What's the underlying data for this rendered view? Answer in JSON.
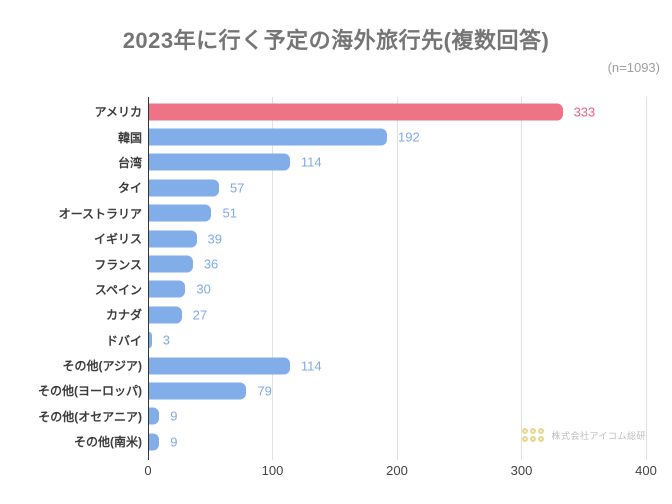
{
  "chart_data": {
    "type": "bar",
    "orientation": "horizontal",
    "title": "2023年に行く予定の海外旅行先(複数回答)",
    "sample_size_label": "(n=1093)",
    "categories": [
      "アメリカ",
      "韓国",
      "台湾",
      "タイ",
      "オーストラリア",
      "イギリス",
      "フランス",
      "スペイン",
      "カナダ",
      "ドバイ",
      "その他(アジア)",
      "その他(ヨーロッパ)",
      "その他(オセアニア)",
      "その他(南米)"
    ],
    "values": [
      333,
      192,
      114,
      57,
      51,
      39,
      36,
      30,
      27,
      3,
      114,
      79,
      9,
      9
    ],
    "xlim": [
      0,
      400
    ],
    "x_ticks": [
      0,
      100,
      200,
      300,
      400
    ],
    "grid": true,
    "legend": false,
    "highlight_index": 0,
    "colors": {
      "bar": "#81ade9",
      "highlight_bar": "#ed7386",
      "value_label": "#7fa9e8",
      "highlight_value_label": "#e8647c",
      "title": "#757575",
      "gridline": "#e0e0e0",
      "axis_line": "#333333"
    }
  },
  "watermark": {
    "text": "株式会社アイコム総研"
  }
}
